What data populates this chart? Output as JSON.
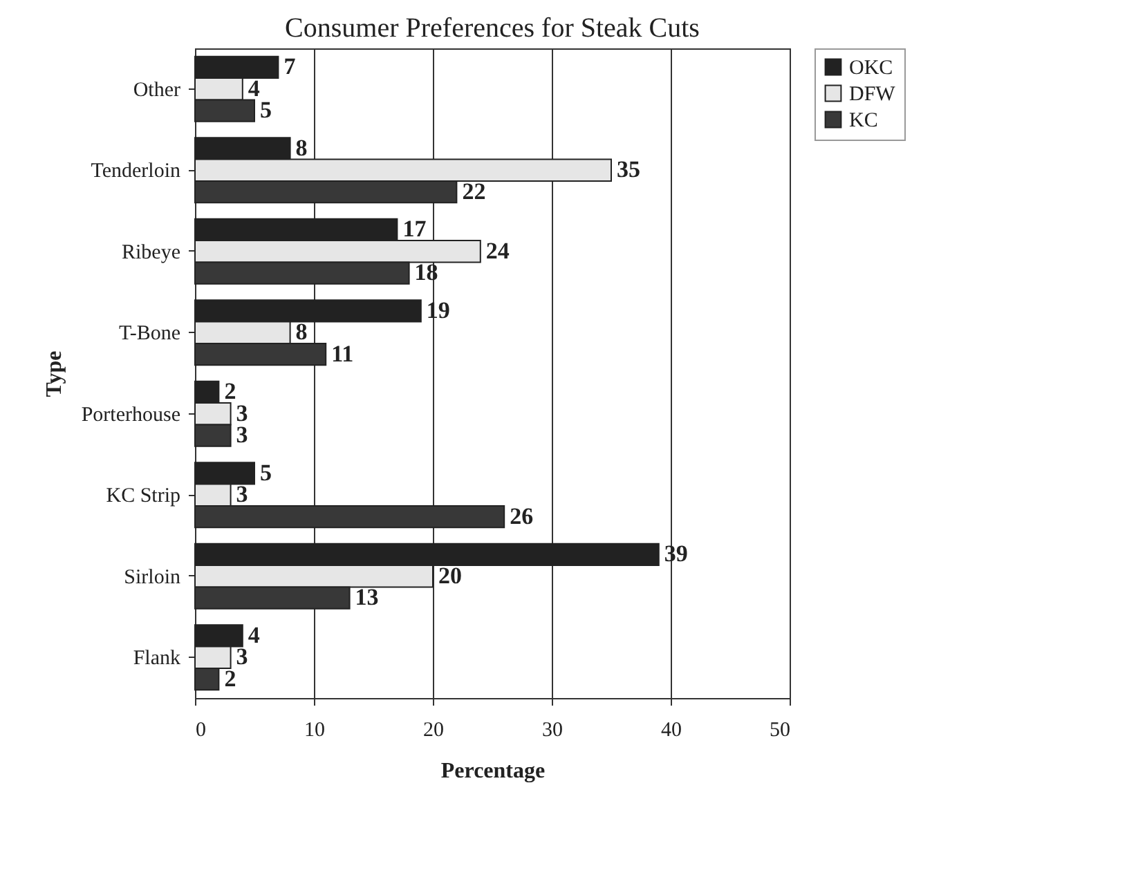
{
  "chart_data": {
    "type": "bar",
    "orientation": "horizontal",
    "title": "Consumer Preferences for Steak Cuts",
    "xlabel": "Percentage",
    "ylabel": "Type",
    "categories": [
      "Other",
      "Tenderloin",
      "Ribeye",
      "T-Bone",
      "Porterhouse",
      "KC Strip",
      "Sirloin",
      "Flank"
    ],
    "series": [
      {
        "name": "OKC",
        "color": "#222222",
        "values": [
          7,
          8,
          17,
          19,
          2,
          5,
          39,
          4
        ]
      },
      {
        "name": "DFW",
        "color": "#e6e6e6",
        "values": [
          4,
          35,
          24,
          8,
          3,
          3,
          20,
          3
        ]
      },
      {
        "name": "KC",
        "color": "#383838",
        "values": [
          5,
          22,
          18,
          11,
          3,
          26,
          13,
          2
        ]
      }
    ],
    "xlim": [
      0,
      50
    ],
    "xticks": [
      0,
      10,
      20,
      30,
      40,
      50
    ],
    "grid": "x",
    "legend": "right",
    "data_labels": true
  }
}
